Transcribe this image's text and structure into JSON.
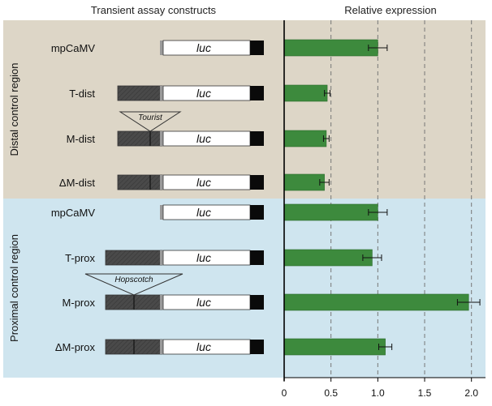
{
  "construct_title": "Transient assay constructs",
  "reporter_label": "luc",
  "regions": [
    {
      "label": "Distal control region",
      "color": "#ddd6c7"
    },
    {
      "label": "Proximal control region",
      "color": "#cfe5ef"
    }
  ],
  "insertions": [
    {
      "label": "Tourist",
      "row": 2
    },
    {
      "label": "Hopscotch",
      "row": 6
    }
  ],
  "rows": [
    {
      "label": "mpCaMV",
      "region": 0,
      "promoter": "none"
    },
    {
      "label": "T-dist",
      "region": 0,
      "promoter": "short"
    },
    {
      "label": "M-dist",
      "region": 0,
      "promoter": "short-ins"
    },
    {
      "label": "ΔM-dist",
      "region": 0,
      "promoter": "short-ins"
    },
    {
      "label": "mpCaMV",
      "region": 1,
      "promoter": "none"
    },
    {
      "label": "T-prox",
      "region": 1,
      "promoter": "long"
    },
    {
      "label": "M-prox",
      "region": 1,
      "promoter": "long-ins"
    },
    {
      "label": "ΔM-prox",
      "region": 1,
      "promoter": "long-ins"
    }
  ],
  "colors": {
    "bar": "#3d8a3d",
    "bar_edge": "#2a6b2a",
    "reporter_end": "#0a0a0a",
    "promoter": "#4a4a4a"
  },
  "chart_data": {
    "type": "bar",
    "orientation": "horizontal",
    "title": "Relative expression",
    "categories": [
      "mpCaMV",
      "T-dist",
      "M-dist",
      "ΔM-dist",
      "mpCaMV",
      "T-prox",
      "M-prox",
      "ΔM-prox"
    ],
    "values": [
      1.0,
      0.46,
      0.45,
      0.43,
      1.0,
      0.94,
      1.97,
      1.08
    ],
    "errors": [
      0.1,
      0.03,
      0.03,
      0.05,
      0.1,
      0.1,
      0.12,
      0.07
    ],
    "xlim": [
      0,
      2.15
    ],
    "xticks": [
      "0",
      "0.5",
      "1.0",
      "1.5",
      "2.0"
    ],
    "grid": "dashed vertical at 0.5, 1.0, 1.5, 2.0"
  }
}
